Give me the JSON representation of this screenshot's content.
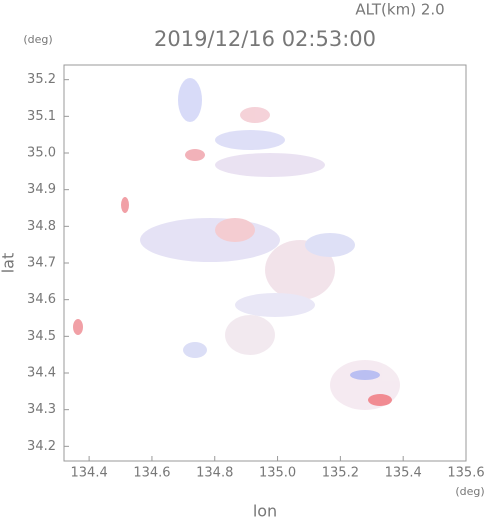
{
  "chart_data": {
    "type": "map",
    "title": "2019/12/16 02:53:00",
    "subtitle": "ALT(km) 2.0",
    "x_label": "lon",
    "y_label": "lat",
    "x_unit": "(deg)",
    "y_unit": "(deg)",
    "xlim": [
      134.32,
      135.6
    ],
    "ylim": [
      34.16,
      35.24
    ],
    "xticks": [
      134.4,
      134.6,
      134.8,
      {
        "value": 135.0,
        "label": "135.0"
      },
      135.2,
      135.4,
      135.6
    ],
    "yticks": [
      34.2,
      34.3,
      34.4,
      34.5,
      34.6,
      34.7,
      34.8,
      34.9,
      {
        "value": 35.0,
        "label": "35.0"
      },
      35.1,
      35.2
    ]
  }
}
